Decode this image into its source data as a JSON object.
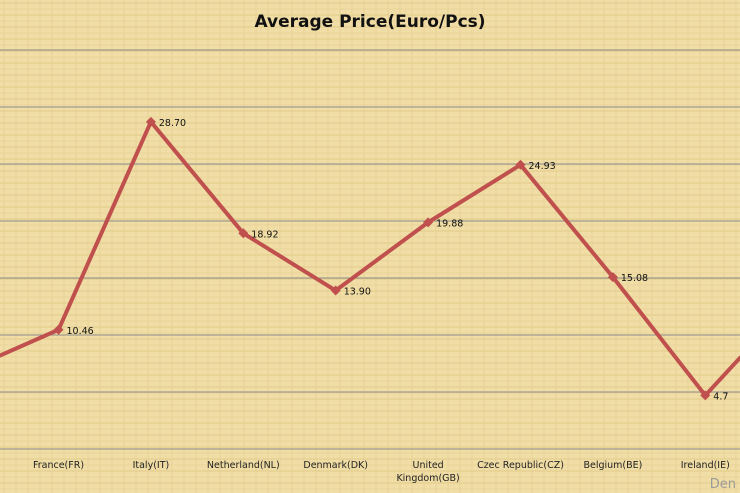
{
  "chart_data": {
    "type": "line",
    "title": "Average Price(Euro/Pcs)",
    "categories": [
      "France(FR)",
      "Italy(IT)",
      "Netherland(NL)",
      "Denmark(DK)",
      "United Kingdom(GB)",
      "Czec Republic(CZ)",
      "Belgium(BE)",
      "Ireland(IE)"
    ],
    "category_lines": [
      [
        "France(FR)"
      ],
      [
        "Italy(IT)"
      ],
      [
        "Netherland(NL)"
      ],
      [
        "Denmark(DK)"
      ],
      [
        "United",
        "Kingdom(GB)"
      ],
      [
        "Czec Republic(CZ)"
      ],
      [
        "Belgium(BE)"
      ],
      [
        "Ireland(IE)"
      ]
    ],
    "values": [
      10.46,
      28.7,
      18.92,
      13.9,
      19.88,
      24.93,
      15.08,
      4.7
    ],
    "value_labels": [
      "10.46",
      "28.70",
      "18.92",
      "13.90",
      "19.88",
      "24.93",
      "15.08",
      "4.7"
    ],
    "edge_values": {
      "left": 8.2,
      "right": 8.0
    },
    "ylim": [
      0,
      35
    ],
    "grid": true,
    "line_color": "#c0504d",
    "background_color": "#f0dea6",
    "gridline_color": "#8c8c8c"
  },
  "watermark": "Den"
}
